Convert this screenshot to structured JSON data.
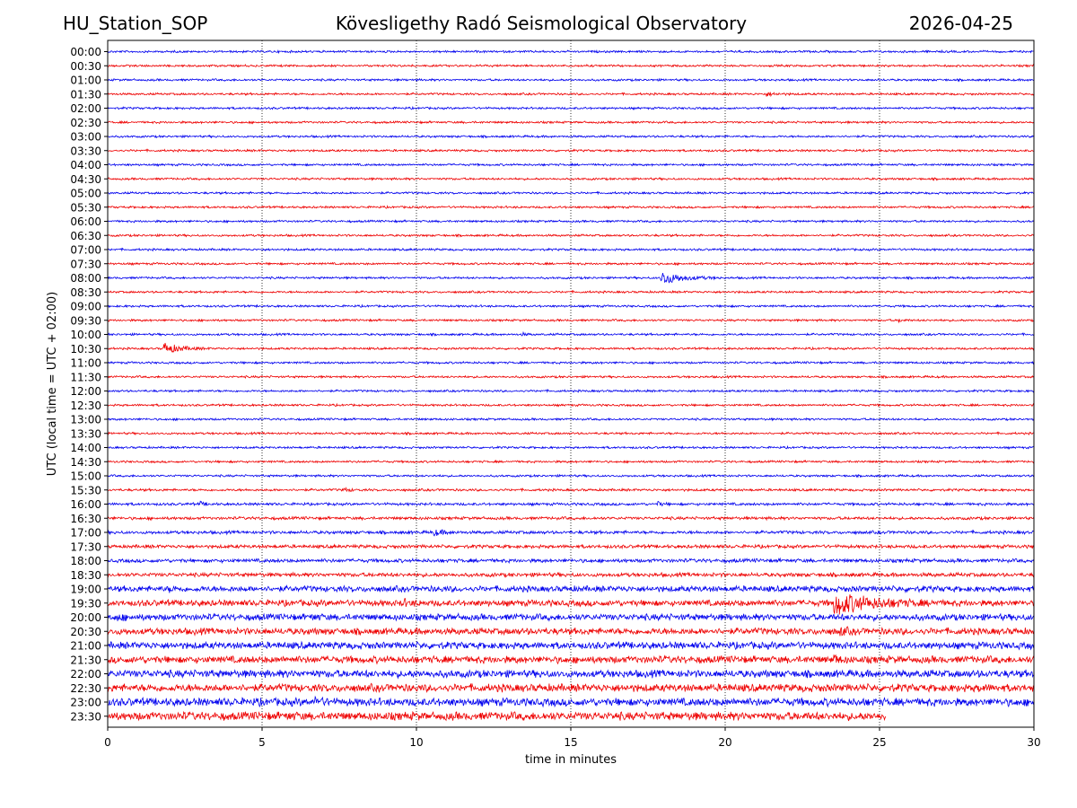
{
  "header": {
    "station": "HU_Station_SOP",
    "observatory": "Kövesligethy Radó Seismological Observatory",
    "date": "2026-04-25"
  },
  "chart_data": {
    "type": "line",
    "title": "Kövesligethy Radó Seismological Observatory",
    "xlabel": "time in minutes",
    "ylabel": "UTC (local time = UTC + 02:00)",
    "xlim": [
      0,
      30
    ],
    "x_ticks": [
      0,
      5,
      10,
      15,
      20,
      25,
      30
    ],
    "x_gridlines": [
      5,
      10,
      15,
      20,
      25
    ],
    "grid": "vertical dotted",
    "colors": [
      "#0000ee",
      "#ee0000"
    ],
    "rows": [
      "00:00",
      "00:30",
      "01:00",
      "01:30",
      "02:00",
      "02:30",
      "03:00",
      "03:30",
      "04:00",
      "04:30",
      "05:00",
      "05:30",
      "06:00",
      "06:30",
      "07:00",
      "07:30",
      "08:00",
      "08:30",
      "09:00",
      "09:30",
      "10:00",
      "10:30",
      "11:00",
      "11:30",
      "12:00",
      "12:30",
      "13:00",
      "13:30",
      "14:00",
      "14:30",
      "15:00",
      "15:30",
      "16:00",
      "16:30",
      "17:00",
      "17:30",
      "18:00",
      "18:30",
      "19:00",
      "19:30",
      "20:00",
      "20:30",
      "21:00",
      "21:30",
      "22:00",
      "22:30",
      "23:00",
      "23:30"
    ],
    "last_row_end_minute": 25.2,
    "events": [
      {
        "row": "01:30",
        "minute": 21.3,
        "duration": 1.0,
        "amplitude": 2.2
      },
      {
        "row": "08:00",
        "minute": 17.9,
        "duration": 2.0,
        "amplitude": 7.5
      },
      {
        "row": "09:30",
        "minute": 25.6,
        "duration": 0.4,
        "amplitude": 2.0
      },
      {
        "row": "10:00",
        "minute": 13.4,
        "duration": 0.4,
        "amplitude": 1.8
      },
      {
        "row": "10:30",
        "minute": 1.8,
        "duration": 1.5,
        "amplitude": 6.5
      },
      {
        "row": "15:30",
        "minute": 7.6,
        "duration": 0.6,
        "amplitude": 2.5
      },
      {
        "row": "16:00",
        "minute": 17.8,
        "duration": 0.4,
        "amplitude": 2.5
      },
      {
        "row": "16:00",
        "minute": 3.0,
        "duration": 0.5,
        "amplitude": 2.0
      },
      {
        "row": "17:00",
        "minute": 10.5,
        "duration": 1.0,
        "amplitude": 3.5
      },
      {
        "row": "19:00",
        "minute": 2.0,
        "duration": 0.4,
        "amplitude": 2.0
      },
      {
        "row": "19:30",
        "minute": 23.5,
        "duration": 3.5,
        "amplitude": 12.0
      },
      {
        "row": "19:30",
        "minute": 9.5,
        "duration": 1.0,
        "amplitude": 2.5
      },
      {
        "row": "20:00",
        "minute": 0.3,
        "duration": 0.5,
        "amplitude": 3.0
      },
      {
        "row": "20:00",
        "minute": 6.6,
        "duration": 0.6,
        "amplitude": 2.5
      },
      {
        "row": "20:30",
        "minute": 23.7,
        "duration": 0.6,
        "amplitude": 4.0
      },
      {
        "row": "21:30",
        "minute": 23.5,
        "duration": 0.6,
        "amplitude": 4.0
      },
      {
        "row": "22:30",
        "minute": 28.2,
        "duration": 0.5,
        "amplitude": 2.5
      },
      {
        "row": "23:00",
        "minute": 6.7,
        "duration": 0.6,
        "amplitude": 2.5
      },
      {
        "row": "23:30",
        "minute": 5.8,
        "duration": 0.6,
        "amplitude": 2.5
      }
    ]
  }
}
